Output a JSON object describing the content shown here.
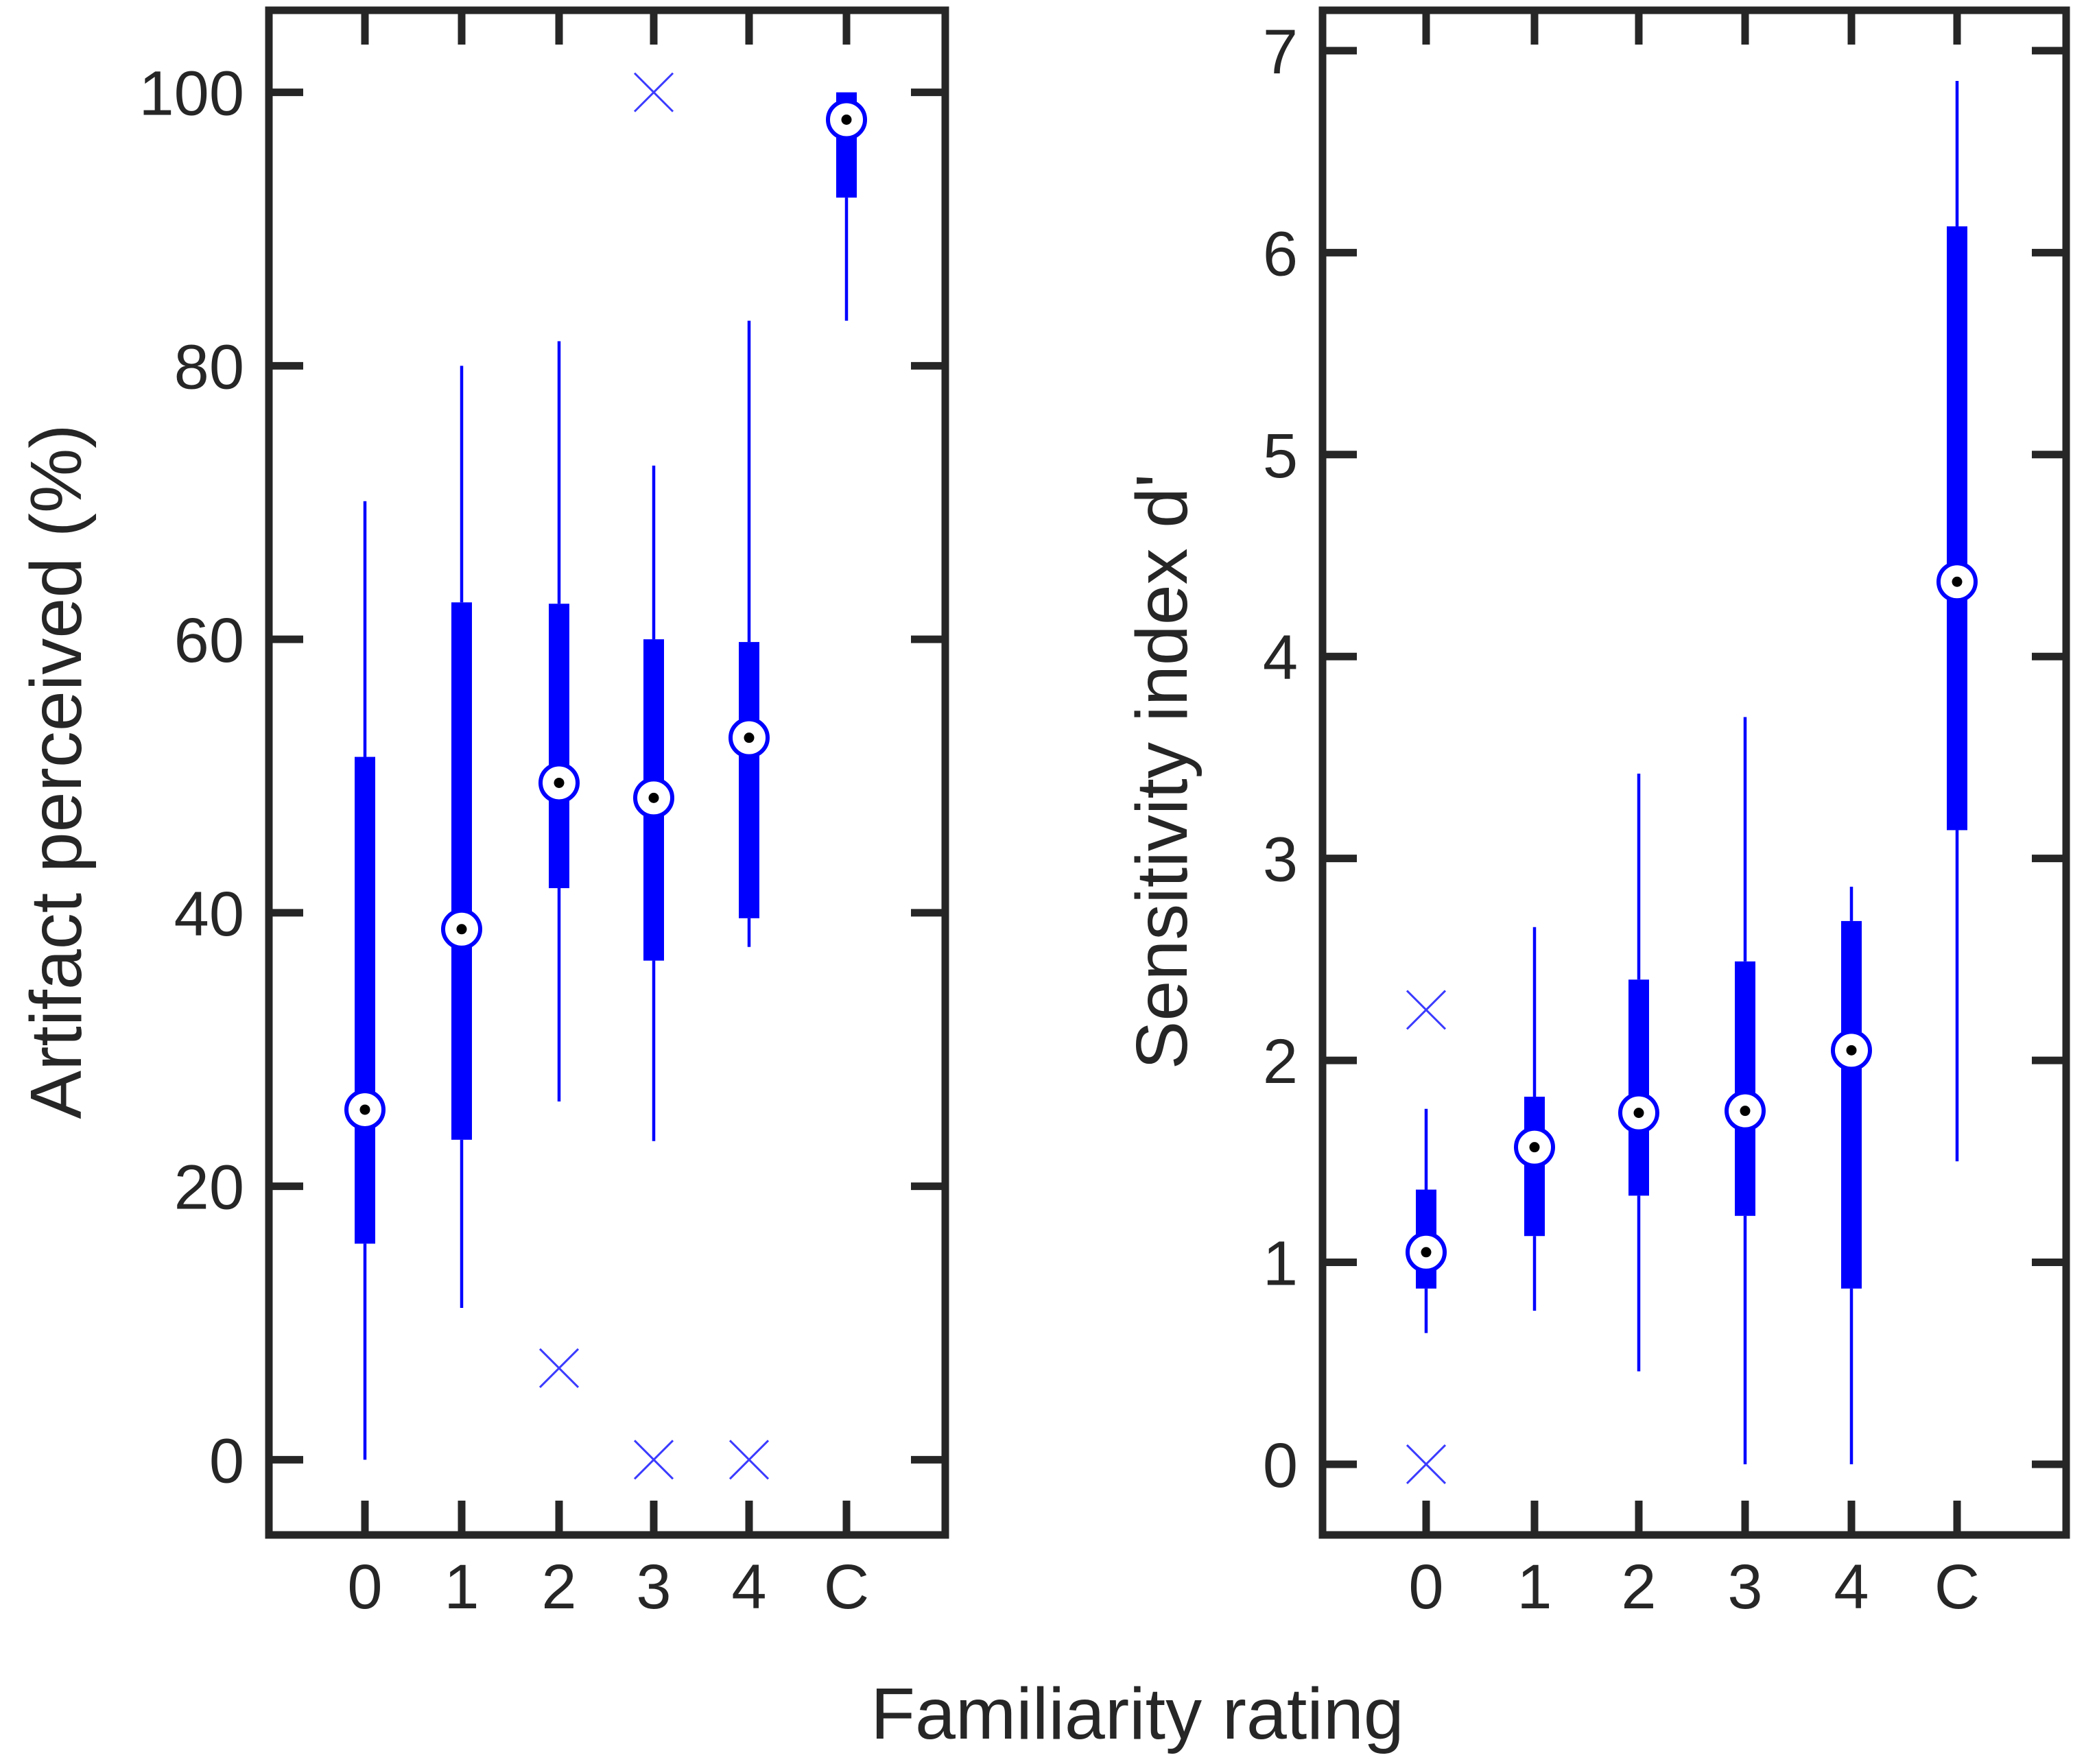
{
  "figure": {
    "shared_xlabel": "Familiarity rating"
  },
  "colors": {
    "box": "#0000ff",
    "outlier": "#3b3bff",
    "axes": "#262626",
    "median_fill": "#ffffff",
    "median_dot": "#000000"
  },
  "chart_data": [
    {
      "type": "box",
      "ylabel": "Artifact perceived (%)",
      "xlabel": "",
      "categories": [
        "0",
        "1",
        "2",
        "3",
        "4",
        "C"
      ],
      "ylim": [
        -5.5,
        106
      ],
      "yticks": [
        0,
        20,
        40,
        60,
        80,
        100
      ],
      "grid": false,
      "legend": "none",
      "boxes": [
        {
          "category": "0",
          "whisker_low": 0,
          "q1": 15.8,
          "median": 25.6,
          "q3": 51.4,
          "whisker_high": 70.1,
          "outliers": []
        },
        {
          "category": "1",
          "whisker_low": 11.1,
          "q1": 23.4,
          "median": 38.8,
          "q3": 62.7,
          "whisker_high": 80.0,
          "outliers": []
        },
        {
          "category": "2",
          "whisker_low": 26.2,
          "q1": 41.8,
          "median": 49.5,
          "q3": 62.6,
          "whisker_high": 81.8,
          "outliers": [
            6.7
          ]
        },
        {
          "category": "3",
          "whisker_low": 23.3,
          "q1": 36.5,
          "median": 48.4,
          "q3": 60.0,
          "whisker_high": 72.7,
          "outliers": [
            100,
            0
          ]
        },
        {
          "category": "4",
          "whisker_low": 37.5,
          "q1": 39.6,
          "median": 52.8,
          "q3": 59.8,
          "whisker_high": 83.3,
          "outliers": [
            0
          ]
        },
        {
          "category": "C",
          "whisker_low": 83.3,
          "q1": 92.3,
          "median": 98.0,
          "q3": 100,
          "whisker_high": 100,
          "outliers": []
        }
      ]
    },
    {
      "type": "box",
      "ylabel": "Sensitivity index d'",
      "xlabel": "",
      "categories": [
        "0",
        "1",
        "2",
        "3",
        "4",
        "C"
      ],
      "ylim": [
        -0.35,
        7.2
      ],
      "yticks": [
        0,
        1,
        2,
        3,
        4,
        5,
        6,
        7
      ],
      "grid": false,
      "legend": "none",
      "boxes": [
        {
          "category": "0",
          "whisker_low": 0.65,
          "q1": 0.87,
          "median": 1.05,
          "q3": 1.36,
          "whisker_high": 1.76,
          "outliers": [
            2.25,
            0
          ]
        },
        {
          "category": "1",
          "whisker_low": 0.76,
          "q1": 1.13,
          "median": 1.57,
          "q3": 1.82,
          "whisker_high": 2.66,
          "outliers": []
        },
        {
          "category": "2",
          "whisker_low": 0.46,
          "q1": 1.33,
          "median": 1.74,
          "q3": 2.4,
          "whisker_high": 3.42,
          "outliers": []
        },
        {
          "category": "3",
          "whisker_low": 0.0,
          "q1": 1.23,
          "median": 1.75,
          "q3": 2.49,
          "whisker_high": 3.7,
          "outliers": []
        },
        {
          "category": "4",
          "whisker_low": 0.0,
          "q1": 0.87,
          "median": 2.05,
          "q3": 2.69,
          "whisker_high": 2.86,
          "outliers": []
        },
        {
          "category": "C",
          "whisker_low": 1.5,
          "q1": 3.14,
          "median": 4.37,
          "q3": 6.13,
          "whisker_high": 6.85,
          "outliers": []
        }
      ]
    }
  ]
}
